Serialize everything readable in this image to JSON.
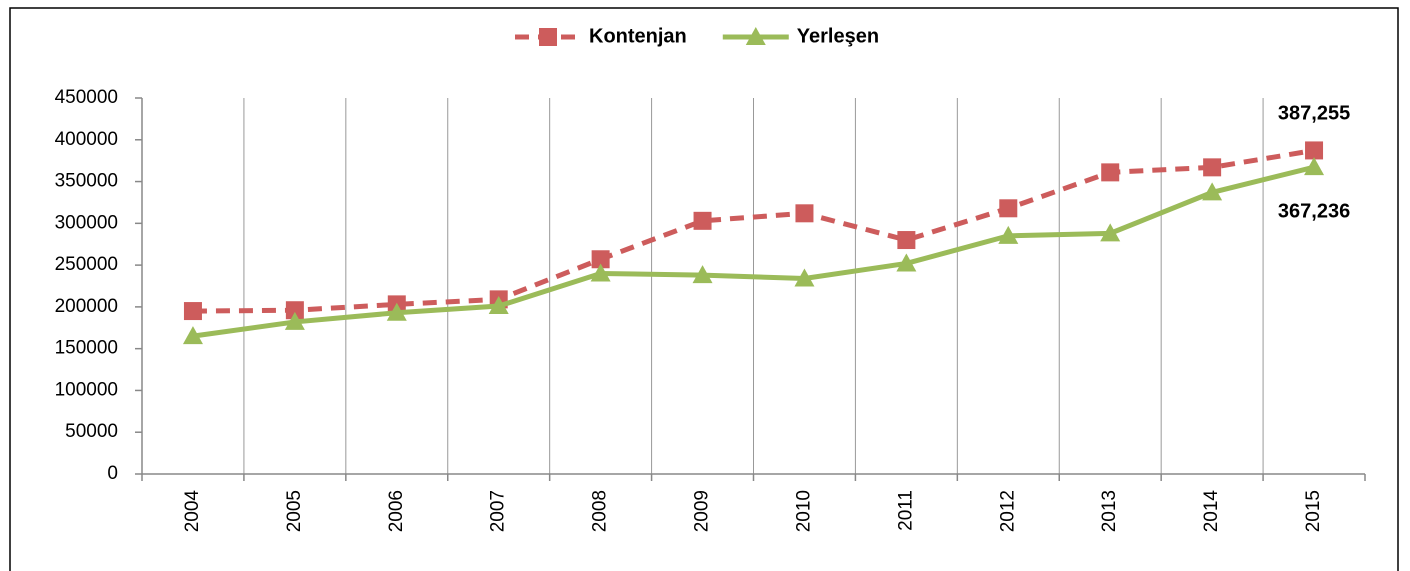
{
  "chart_data": {
    "type": "line",
    "categories": [
      "2004",
      "2005",
      "2006",
      "2007",
      "2008",
      "2009",
      "2010",
      "2011",
      "2012",
      "2013",
      "2014",
      "2015"
    ],
    "series": [
      {
        "name": "Kontenjan",
        "color": "#cd5c5c",
        "dash": true,
        "marker": "square",
        "values": [
          195000,
          196000,
          203000,
          209000,
          257000,
          303000,
          312000,
          280000,
          318000,
          361000,
          367000,
          387255
        ],
        "value_labels": [
          null,
          null,
          null,
          null,
          null,
          null,
          null,
          null,
          null,
          null,
          null,
          "387,255"
        ]
      },
      {
        "name": "Yerleşen",
        "color": "#9bbb59",
        "dash": false,
        "marker": "triangle",
        "values": [
          165000,
          182000,
          193000,
          201000,
          240000,
          238000,
          234000,
          252000,
          285000,
          288000,
          337000,
          367236
        ],
        "value_labels": [
          null,
          null,
          null,
          null,
          null,
          null,
          null,
          null,
          null,
          null,
          null,
          "367,236"
        ]
      }
    ],
    "ylim": [
      0,
      450000
    ],
    "yticks": [
      0,
      50000,
      100000,
      150000,
      200000,
      250000,
      300000,
      350000,
      400000,
      450000
    ],
    "legend": "top"
  }
}
